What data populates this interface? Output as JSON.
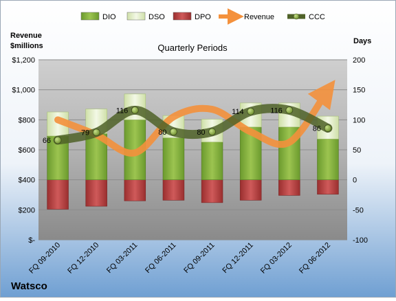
{
  "company": "Watsco",
  "chart_data": {
    "type": "bar",
    "title": "Quarterly Periods",
    "y_left_label_lines": [
      "Revenue",
      "$millions"
    ],
    "y_right_label": "Days",
    "categories": [
      "FQ 09-2010",
      "FQ 12-2010",
      "FQ 03-2011",
      "FQ 06-2011",
      "FQ 09-2011",
      "FQ 12-2011",
      "FQ 03-2012",
      "FQ 06-2012"
    ],
    "y_left_ticks": [
      "$-",
      "$200",
      "$400",
      "$600",
      "$800",
      "$1,000",
      "$1,200"
    ],
    "y_right_ticks": [
      "-100",
      "-50",
      "0",
      "50",
      "100",
      "150",
      "200"
    ],
    "y_left_range": [
      0,
      1200
    ],
    "y_right_range": [
      -100,
      200
    ],
    "legend_position": "top",
    "series": [
      {
        "name": "DIO",
        "kind": "stacked-bar",
        "axis": "right",
        "color": "#7aa83a",
        "values": [
          73,
          77,
          100,
          70,
          63,
          88,
          88,
          68
        ]
      },
      {
        "name": "DSO",
        "kind": "stacked-bar",
        "axis": "right",
        "color": "#e3efcd",
        "values": [
          40,
          41,
          43,
          37,
          38,
          40,
          40,
          38
        ]
      },
      {
        "name": "DPO",
        "kind": "stacked-bar",
        "axis": "right",
        "color": "#b83c3c",
        "values": [
          -49,
          -44,
          -35,
          -34,
          -38,
          -34,
          -26,
          -24
        ]
      },
      {
        "name": "Revenue",
        "kind": "line",
        "axis": "left",
        "color": "#f4913c",
        "values": [
          800,
          700,
          580,
          820,
          870,
          720,
          650,
          1000
        ]
      },
      {
        "name": "CCC",
        "kind": "line",
        "axis": "right",
        "color": "#4f6228",
        "values": [
          66,
          79,
          116,
          80,
          80,
          114,
          116,
          86
        ],
        "data_labels": [
          "66",
          "79",
          "116",
          "80",
          "80",
          "114",
          "116",
          "86"
        ]
      }
    ],
    "grid": true
  }
}
